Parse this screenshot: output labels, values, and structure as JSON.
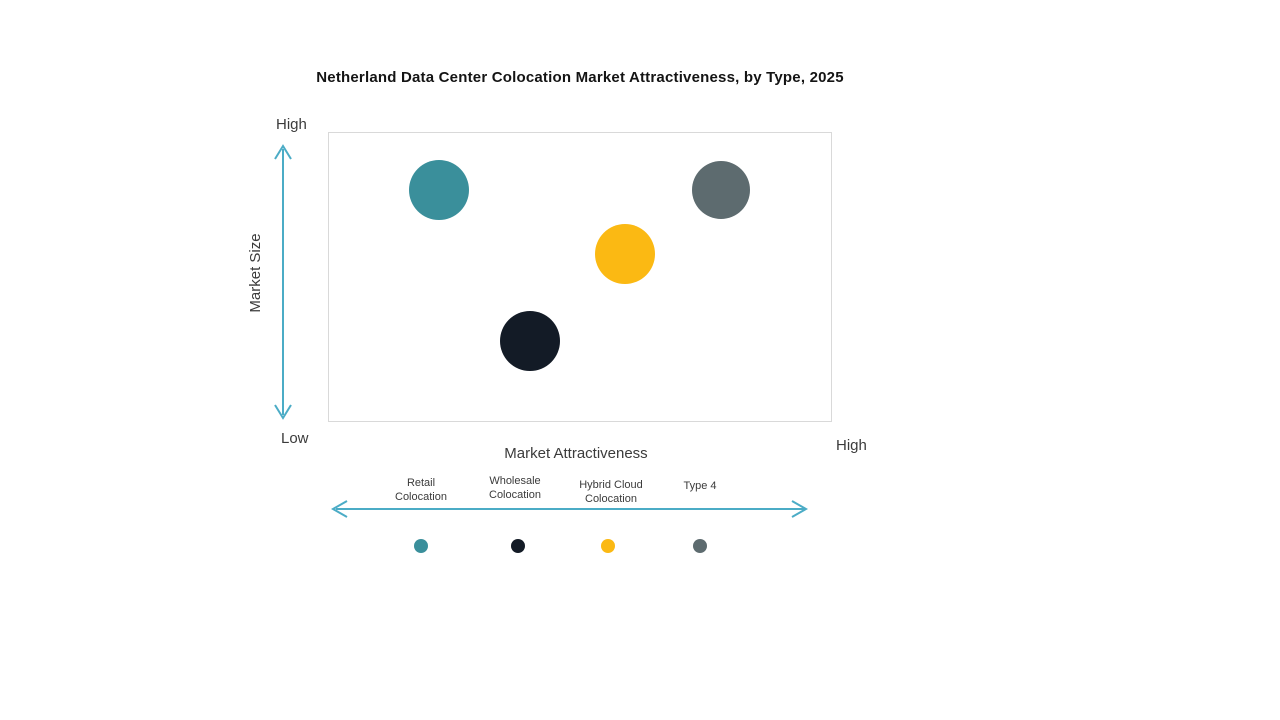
{
  "title": "Netherland Data Center Colocation Market Attractiveness,  by Type, 2025",
  "y_axis": {
    "label": "Market Size",
    "top_label": "High",
    "bottom_label": "Low"
  },
  "x_axis": {
    "label": "Market Attractiveness",
    "right_label": "High"
  },
  "categories": [
    "Retail Colocation",
    "Wholesale Colocation",
    "Hybrid Cloud Colocation",
    "Type 4"
  ],
  "legend": [
    {
      "name": "Retail Colocation",
      "color": "#3A8F9B"
    },
    {
      "name": "Wholesale Colocation",
      "color": "#131B26"
    },
    {
      "name": "Hybrid Cloud Colocation",
      "color": "#FBB913"
    },
    {
      "name": "Type 4",
      "color": "#5D6B6F"
    }
  ],
  "colors": {
    "arrow": "#4BACC6",
    "plot_border": "#D9D9D9",
    "title_text": "#141414",
    "axis_text": "#3b3b3b"
  },
  "chart_data": {
    "type": "scatter",
    "title": "Netherland Data Center Colocation Market Attractiveness,  by Type, 2025",
    "xlabel": "Market Attractiveness",
    "ylabel": "Market Size",
    "x_scale": [
      "Low",
      "High"
    ],
    "y_scale": [
      "Low",
      "High"
    ],
    "grid": false,
    "legend_position": "bottom",
    "points": [
      {
        "id": "retail-colocation",
        "name": "Retail Colocation",
        "x": 0.22,
        "y": 0.8,
        "r": 30,
        "color": "#3A8F9B"
      },
      {
        "id": "wholesale-colocation",
        "name": "Wholesale Colocation",
        "x": 0.4,
        "y": 0.28,
        "r": 30,
        "color": "#131B26"
      },
      {
        "id": "hybrid-cloud-colocation",
        "name": "Hybrid Cloud Colocation",
        "x": 0.59,
        "y": 0.58,
        "r": 30,
        "color": "#FBB913"
      },
      {
        "id": "type-4",
        "name": "Type 4",
        "x": 0.78,
        "y": 0.8,
        "r": 29,
        "color": "#5D6B6F"
      }
    ]
  }
}
